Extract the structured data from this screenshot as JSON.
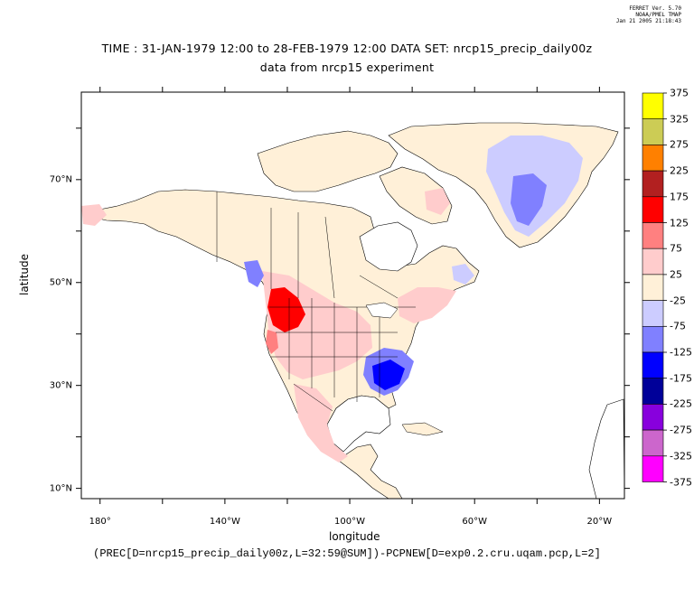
{
  "stamp": {
    "line1": "FERRET Ver. 5.70",
    "line2": "NOAA/PMEL TMAP",
    "line3": "Jan 21 2005 21:18:43"
  },
  "header": {
    "title_line1": "TIME : 31-JAN-1979 12:00 to 28-FEB-1979 12:00 DATA SET: nrcp15_precip_daily00z",
    "title_line2": "data from nrcp15 experiment"
  },
  "axes": {
    "x_label": "longitude",
    "y_label": "latitude",
    "x_ticks": [
      {
        "value": -180,
        "label": "180°"
      },
      {
        "value": -140,
        "label": "140°W"
      },
      {
        "value": -100,
        "label": "100°W"
      },
      {
        "value": -60,
        "label": "60°W"
      },
      {
        "value": -20,
        "label": "20°W"
      }
    ],
    "y_ticks": [
      {
        "value": 70,
        "label": "70°N"
      },
      {
        "value": 50,
        "label": "50°N"
      },
      {
        "value": 30,
        "label": "30°N"
      },
      {
        "value": 10,
        "label": "10°N"
      }
    ]
  },
  "footer": {
    "expression": "(PREC[D=nrcp15_precip_daily00z,L=32:59@SUM])-PCPNEW[D=exp0.2.cru.uqam.pcp,L=2]"
  },
  "colorbar": {
    "levels": [
      {
        "label": "375",
        "color": "#ffff00"
      },
      {
        "label": "325",
        "color": "#cccc55"
      },
      {
        "label": "275",
        "color": "#ff8000"
      },
      {
        "label": "225",
        "color": "#b22020"
      },
      {
        "label": "175",
        "color": "#ff0000"
      },
      {
        "label": "125",
        "color": "#ff8080"
      },
      {
        "label": "75",
        "color": "#ffcccc"
      },
      {
        "label": "25",
        "color": "#fff0d8"
      },
      {
        "label": "-25",
        "color": "#ccccff"
      },
      {
        "label": "-75",
        "color": "#8080ff"
      },
      {
        "label": "-125",
        "color": "#0000ff"
      },
      {
        "label": "-175",
        "color": "#000099"
      },
      {
        "label": "-225",
        "color": "#8800dd"
      },
      {
        "label": "-275",
        "color": "#cc66cc"
      },
      {
        "label": "-325",
        "color": "#ff00ff"
      },
      {
        "label": "-375",
        "color": ""
      }
    ]
  },
  "map_data": {
    "lon_range": [
      -186,
      -12
    ],
    "lat_range": [
      8,
      87
    ]
  }
}
